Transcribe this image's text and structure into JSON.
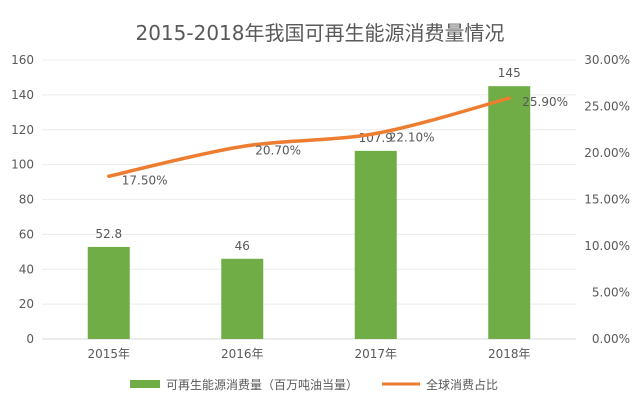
{
  "chart_data": {
    "type": "bar+line",
    "title": "2015-2018年我国可再生能源消费量情况",
    "categories": [
      "2015年",
      "2016年",
      "2017年",
      "2018年"
    ],
    "series": [
      {
        "name": "可再生能源消费量（百万吨油当量）",
        "type": "bar",
        "axis": "left",
        "values": [
          52.8,
          46,
          107.9,
          145
        ],
        "labels": [
          "52.8",
          "46",
          "107.9",
          "145"
        ],
        "color": "#70AD47"
      },
      {
        "name": "全球消费占比",
        "type": "line",
        "axis": "right",
        "values": [
          17.5,
          20.7,
          22.1,
          25.9
        ],
        "labels": [
          "17.50%",
          "20.70%",
          "22.10%",
          "25.90%"
        ],
        "color": "#ED7D31"
      }
    ],
    "left_axis": {
      "ylim": [
        0,
        160
      ],
      "ticks": [
        "0",
        "20",
        "40",
        "60",
        "80",
        "100",
        "120",
        "140",
        "160"
      ]
    },
    "right_axis": {
      "ylim": [
        0,
        30
      ],
      "ticks": [
        "0.00%",
        "5.00%",
        "10.00%",
        "15.00%",
        "20.00%",
        "25.00%",
        "30.00%"
      ]
    },
    "grid": true,
    "legend": "bottom"
  }
}
